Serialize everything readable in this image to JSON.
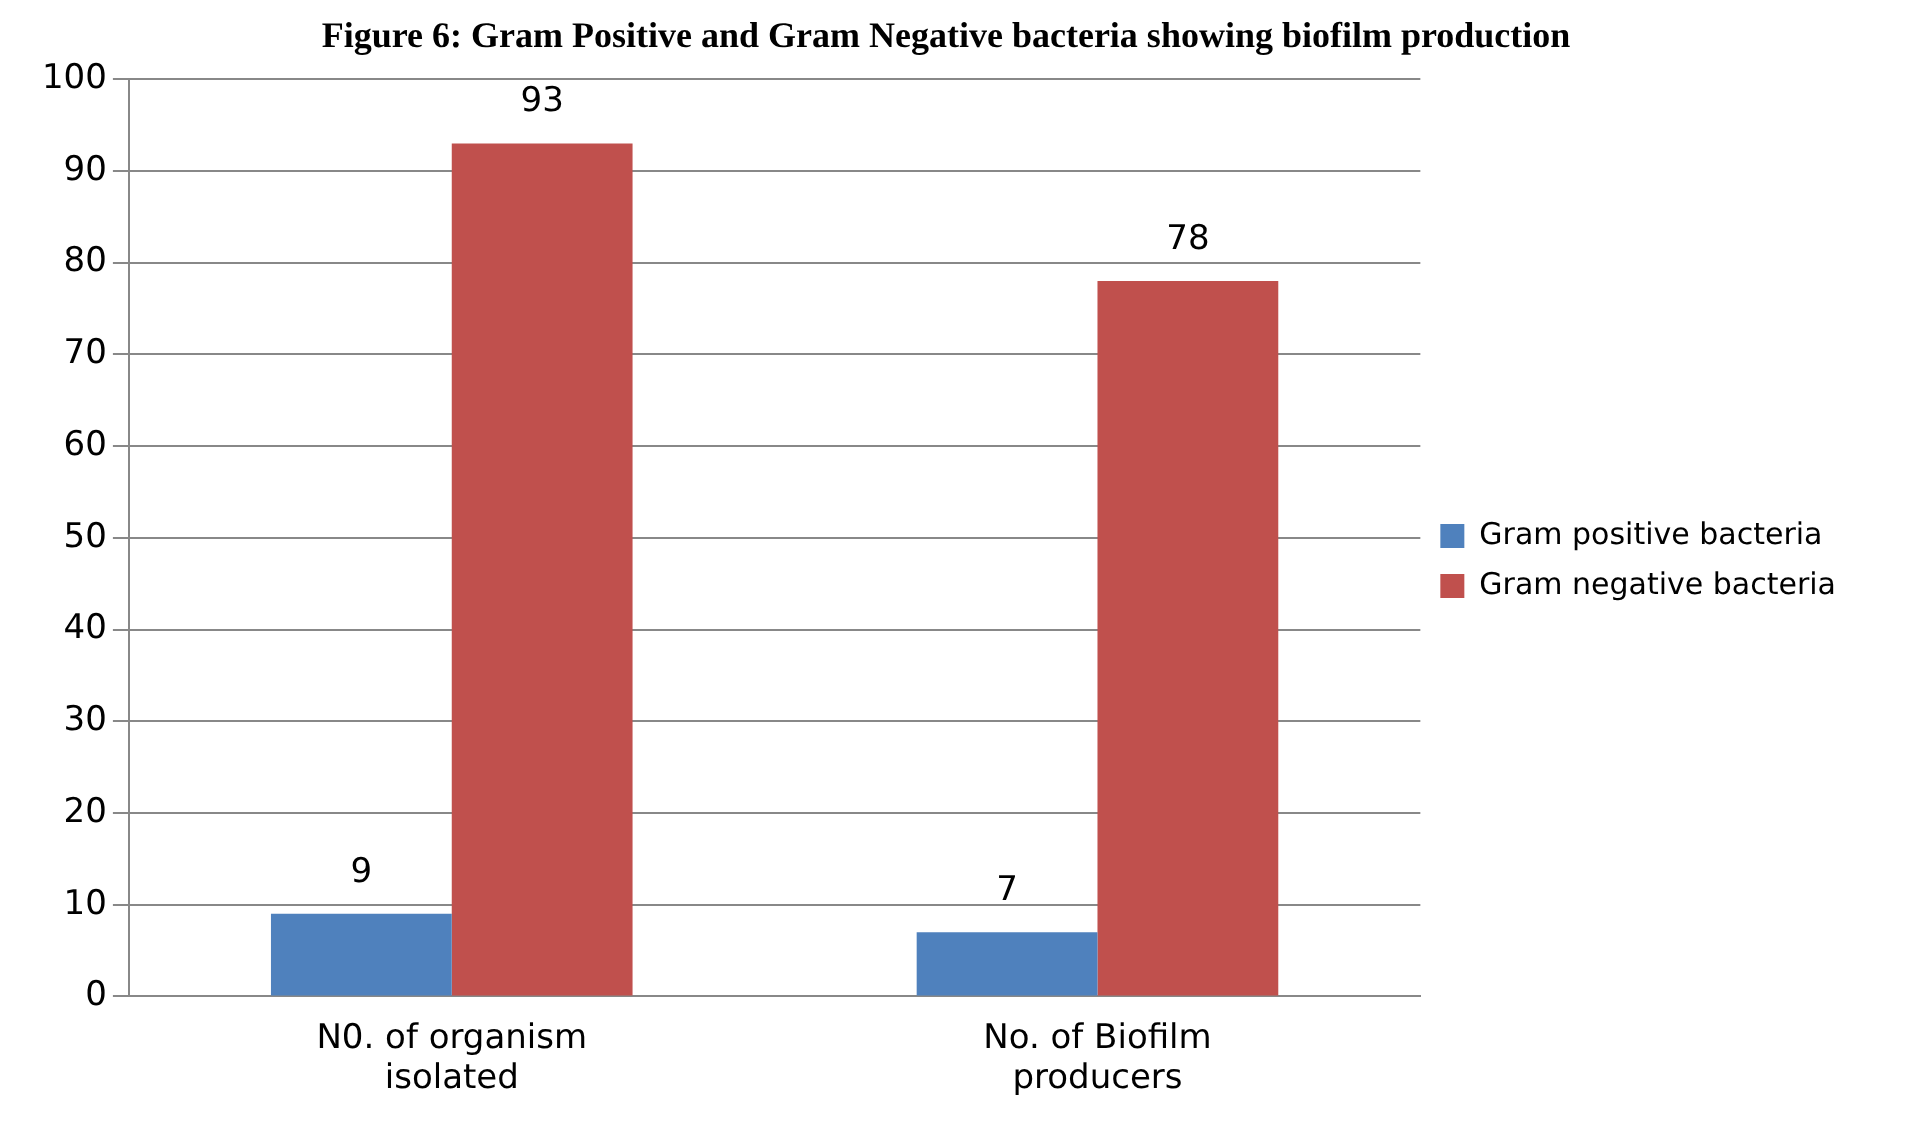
{
  "chart_data": {
    "type": "bar",
    "title": "Figure 6: Gram Positive and Gram Negative bacteria showing biofilm production",
    "categories": [
      "N0. of organism isolated",
      "No. of Biofilm producers"
    ],
    "series": [
      {
        "name": "Gram positive bacteria",
        "color": "#4f81bd",
        "values": [
          9,
          7
        ]
      },
      {
        "name": "Gram negative bacteria",
        "color": "#c0504d",
        "values": [
          93,
          78
        ]
      }
    ],
    "ylim": [
      0,
      100
    ],
    "yticks": [
      0,
      10,
      20,
      30,
      40,
      50,
      60,
      70,
      80,
      90,
      100
    ],
    "grid": "y",
    "legend": "right",
    "data_labels": true
  }
}
